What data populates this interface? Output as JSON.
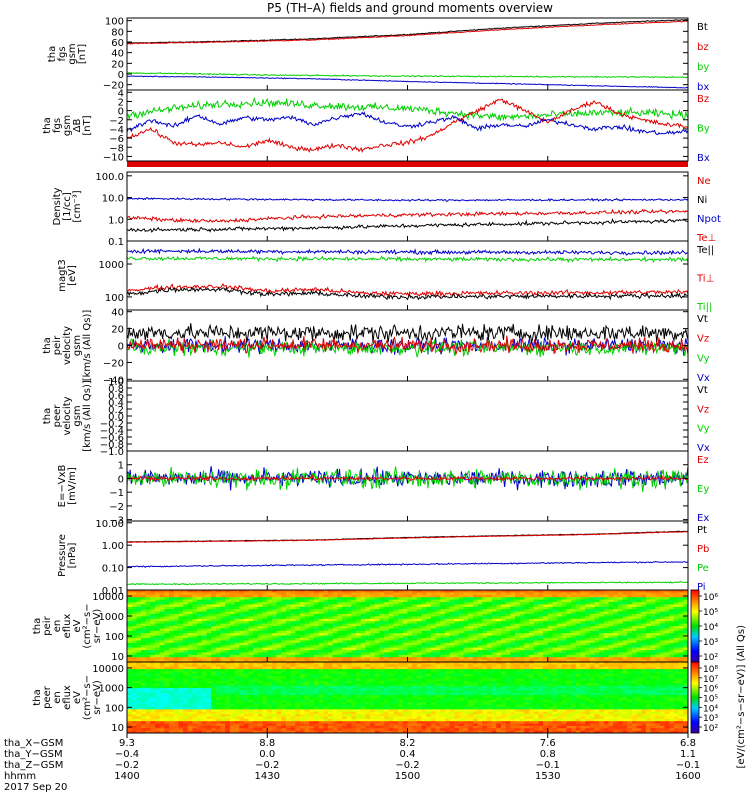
{
  "title": "P5 (TH–A) fields and ground moments overview",
  "colors": {
    "black": "#000000",
    "red": "#e00000",
    "green": "#00d000",
    "blue": "#0000c8"
  },
  "chart_data": [
    {
      "type": "line",
      "ylabel": [
        "tha",
        "fgs",
        "gsm",
        "[nT]"
      ],
      "ylim": [
        -30,
        105
      ],
      "ticks": [
        "100",
        "80",
        "60",
        "40",
        "20",
        "0",
        "−20"
      ],
      "tick_values": [
        100,
        80,
        60,
        40,
        20,
        0,
        -20
      ],
      "legend": [
        {
          "label": "Bt",
          "color": "black"
        },
        {
          "label": "bz",
          "color": "red"
        },
        {
          "label": "by",
          "color": "green"
        },
        {
          "label": "bx",
          "color": "blue"
        }
      ],
      "series": [
        {
          "name": "Bt",
          "color": "black",
          "x": [
            1400,
            1420,
            1440,
            1500,
            1520,
            1540,
            1600
          ],
          "y": [
            58,
            61,
            66,
            74,
            86,
            95,
            102
          ],
          "noise": 0.6
        },
        {
          "name": "bz",
          "color": "red",
          "x": [
            1400,
            1420,
            1440,
            1500,
            1520,
            1540,
            1600
          ],
          "y": [
            57,
            60,
            64,
            72,
            83,
            92,
            99
          ],
          "noise": 0.6
        },
        {
          "name": "by",
          "color": "green",
          "x": [
            1400,
            1410,
            1430,
            1500,
            1530,
            1600
          ],
          "y": [
            2,
            1,
            -2,
            -4,
            -5,
            -6
          ],
          "noise": 0.8
        },
        {
          "name": "bx",
          "color": "blue",
          "x": [
            1400,
            1420,
            1440,
            1500,
            1520,
            1540,
            1600
          ],
          "y": [
            -4,
            -6,
            -9,
            -14,
            -18,
            -22,
            -26
          ],
          "noise": 0.5
        }
      ]
    },
    {
      "type": "line",
      "ylabel": [
        "tha",
        "fgs",
        "gsm",
        "ΔB",
        "[nT]"
      ],
      "ylim": [
        -11,
        4.5
      ],
      "ticks": [
        "4",
        "2",
        "0",
        "−2",
        "−4",
        "−6",
        "−8",
        "−10"
      ],
      "tick_values": [
        4,
        2,
        0,
        -2,
        -4,
        -6,
        -8,
        -10
      ],
      "legend": [
        {
          "label": "Bz",
          "color": "red"
        },
        {
          "label": "By",
          "color": "green"
        },
        {
          "label": "Bx",
          "color": "blue"
        }
      ],
      "series": [
        {
          "name": "By",
          "color": "green",
          "x": [
            1400,
            1410,
            1420,
            1430,
            1440,
            1450,
            1500,
            1510,
            1520,
            1530,
            1540,
            1550,
            1600
          ],
          "y": [
            -1,
            0.5,
            1.5,
            1.8,
            1.2,
            0.8,
            0.5,
            -0.5,
            -1.5,
            -1,
            -0.5,
            -0.5,
            -1
          ],
          "noise": 0.6
        },
        {
          "name": "Bz",
          "color": "red",
          "x": [
            1400,
            1405,
            1410,
            1415,
            1420,
            1425,
            1430,
            1435,
            1440,
            1445,
            1450,
            1455,
            1500,
            1505,
            1510,
            1515,
            1520,
            1525,
            1530,
            1535,
            1540,
            1545,
            1550,
            1555,
            1600
          ],
          "y": [
            -6,
            -4,
            -7,
            -7.5,
            -7,
            -8,
            -6.5,
            -8,
            -8.5,
            -7.5,
            -8.5,
            -7.5,
            -7,
            -5.5,
            -2.5,
            0,
            2.5,
            0,
            -2.5,
            0,
            2,
            -0.5,
            -2,
            -3,
            -3.5
          ],
          "noise": 0.35
        },
        {
          "name": "Bx",
          "color": "blue",
          "x": [
            1400,
            1405,
            1410,
            1415,
            1420,
            1425,
            1430,
            1435,
            1440,
            1445,
            1450,
            1455,
            1500,
            1505,
            1510,
            1515,
            1520,
            1525,
            1530,
            1535,
            1540,
            1545,
            1550,
            1555,
            1600
          ],
          "y": [
            -4.5,
            -2,
            -3.5,
            -1,
            -3,
            -1.5,
            -2,
            -1.5,
            -3,
            -1.5,
            -0.5,
            -2.5,
            -3.5,
            -2.5,
            -1.5,
            -4,
            -3,
            -3.5,
            -2,
            -3,
            -4,
            -3.5,
            -4.5,
            -5,
            -4.5
          ],
          "noise": 0.35
        }
      ]
    },
    {
      "type": "line",
      "ylabel": [
        "Density",
        "[1/cc]",
        "[cm⁻³]"
      ],
      "log": true,
      "ylim": [
        0.1,
        150
      ],
      "ticks": [
        "100.0",
        "10.0",
        "1.0",
        "0.1"
      ],
      "tick_values": [
        100,
        10,
        1,
        0.1
      ],
      "legend": [
        {
          "label": "Ne",
          "color": "red"
        },
        {
          "label": "Ni",
          "color": "black"
        },
        {
          "label": "Npot",
          "color": "blue"
        },
        {
          "label": "Te⊥",
          "color": "red"
        }
      ],
      "series": [
        {
          "name": "Ni",
          "color": "blue",
          "x": [
            1400,
            1420,
            1440,
            1500,
            1600
          ],
          "y": [
            9,
            8.5,
            8,
            7.5,
            8
          ],
          "noise": 0.03
        },
        {
          "name": "Ne",
          "color": "red",
          "x": [
            1400,
            1410,
            1420,
            1440,
            1500,
            1530,
            1600
          ],
          "y": [
            1.2,
            0.9,
            0.8,
            1.3,
            1.6,
            1.9,
            2.3
          ],
          "noise": 0.06
        },
        {
          "name": "Npot",
          "color": "black",
          "x": [
            1400,
            1420,
            1440,
            1500,
            1530,
            1600
          ],
          "y": [
            0.32,
            0.35,
            0.4,
            0.5,
            0.65,
            0.85
          ],
          "noise": 0.06
        }
      ]
    },
    {
      "type": "line",
      "ylabel": [
        "magt3",
        "[eV]"
      ],
      "log": true,
      "ylim": [
        40,
        5000
      ],
      "ticks": [
        "1000",
        "100"
      ],
      "tick_values": [
        1000,
        100
      ],
      "legend": [
        {
          "label": "Te||",
          "color": "black"
        },
        {
          "label": "Ti⊥",
          "color": "red"
        },
        {
          "label": "Ti||",
          "color": "green"
        }
      ],
      "series": [
        {
          "name": "Te⊥",
          "color": "blue",
          "x": [
            1400,
            1500,
            1600
          ],
          "y": [
            2500,
            2300,
            2200
          ],
          "noise": 0.04
        },
        {
          "name": "Ti⊥",
          "color": "green",
          "x": [
            1400,
            1500,
            1600
          ],
          "y": [
            1500,
            1400,
            1350
          ],
          "noise": 0.04
        },
        {
          "name": "Te||",
          "color": "red",
          "x": [
            1400,
            1410,
            1420,
            1430,
            1440,
            1450,
            1500,
            1600
          ],
          "y": [
            160,
            200,
            210,
            150,
            170,
            130,
            125,
            140
          ],
          "noise": 0.05
        },
        {
          "name": "Ti||",
          "color": "black",
          "x": [
            1400,
            1410,
            1420,
            1430,
            1440,
            1450,
            1500,
            1600
          ],
          "y": [
            120,
            170,
            170,
            120,
            130,
            105,
            100,
            110
          ],
          "noise": 0.05
        }
      ]
    },
    {
      "type": "line",
      "ylabel": [
        "tha",
        "peir",
        "velocity",
        "gsm",
        "[km/s (All Qs)]"
      ],
      "ylim": [
        -42,
        42
      ],
      "ticks": [
        "40",
        "20",
        "0",
        "−20",
        "−40"
      ],
      "tick_values": [
        40,
        20,
        0,
        -20,
        -40
      ],
      "legend": [
        {
          "label": "Vt",
          "color": "black"
        },
        {
          "label": "Vz",
          "color": "red"
        },
        {
          "label": "Vy",
          "color": "green"
        },
        {
          "label": "Vx",
          "color": "blue"
        }
      ],
      "series": [
        {
          "name": "Vx",
          "color": "blue",
          "x": [
            1400,
            1600
          ],
          "y": [
            0,
            0
          ],
          "noise": 6
        },
        {
          "name": "Vy",
          "color": "green",
          "x": [
            1400,
            1600
          ],
          "y": [
            -3,
            -3
          ],
          "noise": 6
        },
        {
          "name": "Vt",
          "color": "black",
          "x": [
            1400,
            1600
          ],
          "y": [
            15,
            15
          ],
          "noise": 7
        },
        {
          "name": "Vz",
          "color": "red",
          "x": [
            1400,
            1600
          ],
          "y": [
            1,
            0
          ],
          "noise": 6
        }
      ]
    },
    {
      "type": "line",
      "ylabel": [
        "tha",
        "peer",
        "velocity",
        "gsm",
        "[km/s (All Qs)]"
      ],
      "ylim": [
        -1,
        1
      ],
      "ticks": [
        "1.0",
        "0.8",
        "0.6",
        "0.4",
        "0.2",
        "0.0",
        "−0.2",
        "−0.4",
        "−0.6",
        "−0.8",
        "−1.0"
      ],
      "tick_values": [
        1,
        0.8,
        0.6,
        0.4,
        0.2,
        0,
        -0.2,
        -0.4,
        -0.6,
        -0.8,
        -1
      ],
      "legend": [
        {
          "label": "Vt",
          "color": "black"
        },
        {
          "label": "Vz",
          "color": "red"
        },
        {
          "label": "Vy",
          "color": "green"
        },
        {
          "label": "Vx",
          "color": "blue"
        }
      ],
      "series": []
    },
    {
      "type": "line",
      "ylabel": [
        "E=−VxB",
        "[mV/m]"
      ],
      "ylim": [
        -3.1,
        2
      ],
      "ticks": [
        "1",
        "0",
        "−1",
        "−2",
        "−3"
      ],
      "tick_values": [
        1,
        0,
        -1,
        -2,
        -3
      ],
      "legend": [
        {
          "label": "Ez",
          "color": "red"
        },
        {
          "label": "Ey",
          "color": "green"
        },
        {
          "label": "Ex",
          "color": "blue"
        }
      ],
      "series": [
        {
          "name": "Ex",
          "color": "blue",
          "x": [
            1400,
            1600
          ],
          "y": [
            0,
            0
          ],
          "noise": 0.45
        },
        {
          "name": "Ey",
          "color": "green",
          "x": [
            1400,
            1600
          ],
          "y": [
            0,
            0
          ],
          "noise": 0.5
        },
        {
          "name": "Ez",
          "color": "red",
          "x": [
            1400,
            1600
          ],
          "y": [
            0,
            0
          ],
          "noise": 0.1
        }
      ]
    },
    {
      "type": "line",
      "ylabel": [
        "Pressure",
        "[nPa]"
      ],
      "log": true,
      "ylim": [
        0.01,
        12
      ],
      "ticks": [
        "10.00",
        "1.00",
        "0.10",
        "0.01"
      ],
      "tick_values": [
        10,
        1,
        0.1,
        0.01
      ],
      "legend": [
        {
          "label": "Pt",
          "color": "black"
        },
        {
          "label": "Pb",
          "color": "red"
        },
        {
          "label": "Pe",
          "color": "green"
        },
        {
          "label": "Pi",
          "color": "blue"
        }
      ],
      "series": [
        {
          "name": "Pt",
          "color": "black",
          "x": [
            1400,
            1440,
            1500,
            1540,
            1600
          ],
          "y": [
            1.4,
            1.7,
            2.2,
            3.1,
            4.2
          ],
          "noise": 0.01
        },
        {
          "name": "Pb",
          "color": "red",
          "x": [
            1400,
            1440,
            1500,
            1540,
            1600
          ],
          "y": [
            1.35,
            1.65,
            2.1,
            3.0,
            4.0
          ],
          "noise": 0.01
        },
        {
          "name": "Pi",
          "color": "blue",
          "x": [
            1400,
            1500,
            1600
          ],
          "y": [
            0.11,
            0.14,
            0.18
          ],
          "noise": 0.02
        },
        {
          "name": "Pe",
          "color": "green",
          "x": [
            1400,
            1500,
            1600
          ],
          "y": [
            0.018,
            0.02,
            0.022
          ],
          "noise": 0.02
        }
      ]
    },
    {
      "type": "heatmap",
      "ylabel": [
        "tha",
        "peir",
        "en",
        "eflux",
        "eV",
        "(cm²−s−",
        "sr−eV)"
      ],
      "log": true,
      "ylim": [
        5,
        20000
      ],
      "ticks": [
        "10000",
        "1000",
        "100",
        "10"
      ],
      "tick_values": [
        10000,
        1000,
        100,
        10
      ],
      "colorbar": {
        "ticks": [
          "10⁶",
          "10⁵",
          "10⁴",
          "10³",
          "10²"
        ],
        "label": "[eV/(cm²−s−sr−eV)] (All Qs)"
      }
    },
    {
      "type": "heatmap",
      "ylabel": [
        "tha",
        "peer",
        "en",
        "eflux",
        "eV",
        "(cm²−s−",
        "sr−eV)"
      ],
      "log": true,
      "ylim": [
        5,
        20000
      ],
      "ticks": [
        "10000",
        "1000",
        "100",
        "10"
      ],
      "tick_values": [
        10000,
        1000,
        100,
        10
      ],
      "colorbar": {
        "ticks": [
          "10⁸",
          "10⁷",
          "10⁶",
          "10⁵",
          "10⁴",
          "10³",
          "10²"
        ],
        "label": "[eV/(cm²−s−sr−eV)] (All Qs)"
      }
    }
  ],
  "x_axis": {
    "ticks": [
      1400,
      1430,
      1500,
      1530,
      1600
    ],
    "rows": [
      {
        "label": "tha_X−GSM",
        "values": [
          "9.3",
          "8.8",
          "8.2",
          "7.6",
          "6.8"
        ]
      },
      {
        "label": "tha_Y−GSM",
        "values": [
          "−0.4",
          "0.0",
          "0.4",
          "0.8",
          "1.1"
        ]
      },
      {
        "label": "tha_Z−GSM",
        "values": [
          "−0.2",
          "−0.2",
          "−0.2",
          "−0.1",
          "−0.1"
        ]
      },
      {
        "label": "hhmm",
        "values": [
          "1400",
          "1430",
          "1500",
          "1530",
          "1600"
        ]
      }
    ],
    "date": "2017 Sep 20"
  }
}
